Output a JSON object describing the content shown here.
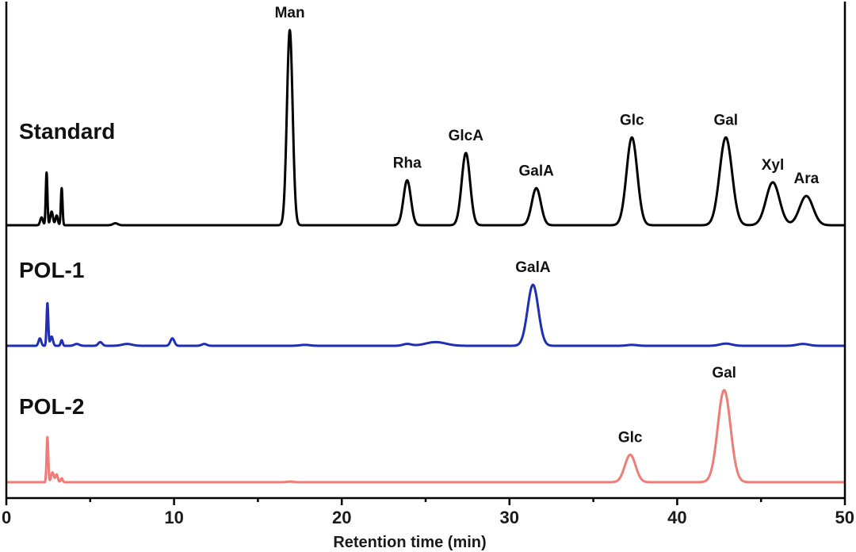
{
  "chart_data": {
    "type": "line",
    "xlabel": "Retention time (min)",
    "ylabel": "",
    "xlim": [
      0,
      50
    ],
    "xticks": [
      0,
      10,
      20,
      30,
      40,
      50
    ],
    "x_tick_labels": [
      "0",
      "10",
      "20",
      "30",
      "40",
      "50"
    ],
    "grid": false,
    "series": [
      {
        "name": "Standard",
        "color": "#000000",
        "peaks": [
          {
            "x": 2.1,
            "h": 0.04,
            "w": 0.08
          },
          {
            "x": 2.4,
            "h": 0.27,
            "w": 0.05
          },
          {
            "x": 2.7,
            "h": 0.07,
            "w": 0.08
          },
          {
            "x": 3.0,
            "h": 0.05,
            "w": 0.07
          },
          {
            "x": 3.3,
            "h": 0.19,
            "w": 0.05
          },
          {
            "x": 6.5,
            "h": 0.01,
            "w": 0.15
          },
          {
            "x": 16.9,
            "h": 1.0,
            "w": 0.17
          },
          {
            "x": 23.9,
            "h": 0.23,
            "w": 0.22
          },
          {
            "x": 27.4,
            "h": 0.37,
            "w": 0.25
          },
          {
            "x": 31.6,
            "h": 0.19,
            "w": 0.27
          },
          {
            "x": 37.3,
            "h": 0.45,
            "w": 0.32
          },
          {
            "x": 42.9,
            "h": 0.45,
            "w": 0.37
          },
          {
            "x": 45.7,
            "h": 0.22,
            "w": 0.4
          },
          {
            "x": 47.7,
            "h": 0.15,
            "w": 0.4
          }
        ],
        "labels": [
          {
            "text": "Man",
            "x": 16.9,
            "h": 1.0
          },
          {
            "text": "Rha",
            "x": 23.9,
            "h": 0.23
          },
          {
            "text": "GlcA",
            "x": 27.4,
            "h": 0.37
          },
          {
            "text": "GalA",
            "x": 31.6,
            "h": 0.19
          },
          {
            "text": "Glc",
            "x": 37.3,
            "h": 0.45
          },
          {
            "text": "Gal",
            "x": 42.9,
            "h": 0.45
          },
          {
            "text": "Xyl",
            "x": 45.7,
            "h": 0.22
          },
          {
            "text": "Ara",
            "x": 47.7,
            "h": 0.15
          }
        ]
      },
      {
        "name": "POL-1",
        "color": "#1f2eb2",
        "peaks": [
          {
            "x": 2.0,
            "h": 0.04,
            "w": 0.08
          },
          {
            "x": 2.45,
            "h": 0.23,
            "w": 0.05
          },
          {
            "x": 2.7,
            "h": 0.05,
            "w": 0.08
          },
          {
            "x": 3.3,
            "h": 0.03,
            "w": 0.06
          },
          {
            "x": 4.2,
            "h": 0.01,
            "w": 0.15
          },
          {
            "x": 5.6,
            "h": 0.02,
            "w": 0.12
          },
          {
            "x": 7.2,
            "h": 0.01,
            "w": 0.3
          },
          {
            "x": 9.9,
            "h": 0.04,
            "w": 0.12
          },
          {
            "x": 11.8,
            "h": 0.01,
            "w": 0.15
          },
          {
            "x": 17.8,
            "h": 0.005,
            "w": 0.3
          },
          {
            "x": 23.9,
            "h": 0.01,
            "w": 0.25
          },
          {
            "x": 25.6,
            "h": 0.02,
            "w": 0.6
          },
          {
            "x": 31.4,
            "h": 0.33,
            "w": 0.32
          },
          {
            "x": 37.3,
            "h": 0.005,
            "w": 0.3
          },
          {
            "x": 42.9,
            "h": 0.012,
            "w": 0.35
          },
          {
            "x": 47.5,
            "h": 0.01,
            "w": 0.35
          }
        ],
        "labels": [
          {
            "text": "GalA",
            "x": 31.4,
            "h": 0.33
          }
        ]
      },
      {
        "name": "POL-2",
        "color": "#ee7c77",
        "peaks": [
          {
            "x": 2.45,
            "h": 0.23,
            "w": 0.05
          },
          {
            "x": 2.75,
            "h": 0.05,
            "w": 0.08
          },
          {
            "x": 3.0,
            "h": 0.04,
            "w": 0.07
          },
          {
            "x": 3.3,
            "h": 0.02,
            "w": 0.06
          },
          {
            "x": 16.9,
            "h": 0.003,
            "w": 0.2
          },
          {
            "x": 37.2,
            "h": 0.14,
            "w": 0.32
          },
          {
            "x": 42.8,
            "h": 0.47,
            "w": 0.38
          }
        ],
        "labels": [
          {
            "text": "Glc",
            "x": 37.2,
            "h": 0.14
          },
          {
            "text": "Gal",
            "x": 42.8,
            "h": 0.47
          }
        ]
      }
    ]
  }
}
